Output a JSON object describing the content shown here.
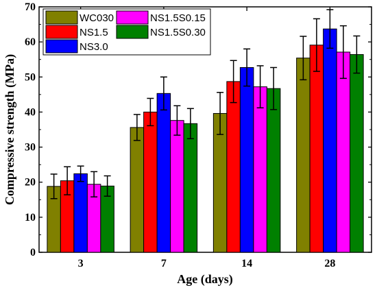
{
  "chart_data": {
    "type": "bar",
    "xlabel": "Age (days)",
    "ylabel": "Compressive strength (MPa)",
    "ylim": [
      0,
      70
    ],
    "yticks": [
      "0",
      "10",
      "20",
      "30",
      "40",
      "50",
      "60",
      "70"
    ],
    "categories": [
      "3",
      "7",
      "14",
      "28"
    ],
    "grid": false,
    "legend_position": "top-left",
    "error_bars": true,
    "series": [
      {
        "name": "WC030",
        "color": "#808000",
        "values": [
          18.8,
          35.6,
          39.6,
          55.4
        ],
        "errors": [
          3.5,
          3.7,
          6.0,
          6.2
        ]
      },
      {
        "name": "NS1.5",
        "color": "#ff0000",
        "values": [
          20.4,
          40.0,
          48.7,
          59.1
        ],
        "errors": [
          4.0,
          3.9,
          6.0,
          7.5
        ]
      },
      {
        "name": "NS3.0",
        "color": "#0000ff",
        "values": [
          22.4,
          45.3,
          52.7,
          63.7
        ],
        "errors": [
          2.2,
          4.7,
          5.3,
          5.5
        ]
      },
      {
        "name": "NS1.5S0.15",
        "color": "#ff00ff",
        "values": [
          19.4,
          37.6,
          47.2,
          57.1
        ],
        "errors": [
          3.6,
          4.2,
          6.0,
          7.5
        ]
      },
      {
        "name": "NS1.5S0.30",
        "color": "#008000",
        "values": [
          18.9,
          36.7,
          46.7,
          56.4
        ],
        "errors": [
          2.9,
          4.3,
          6.0,
          5.3
        ]
      }
    ]
  }
}
